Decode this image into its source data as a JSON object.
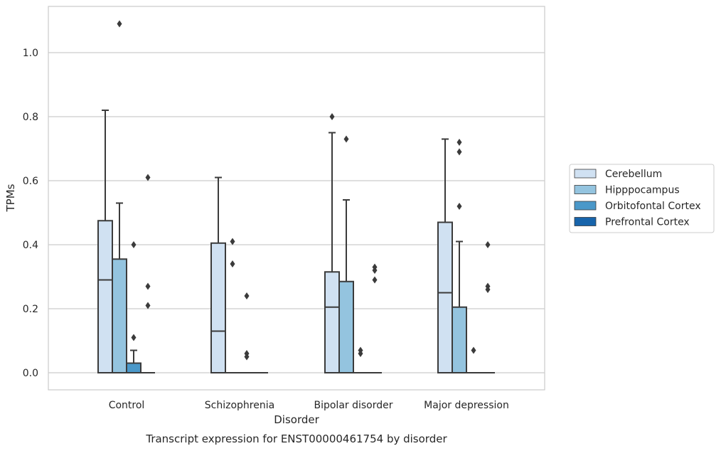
{
  "chart_data": {
    "type": "box",
    "xlabel": "Disorder",
    "ylabel": "TPMs",
    "caption": "Transcript expression for ENST00000461754 by disorder",
    "ylim": [
      -0.052,
      1.145
    ],
    "yticks": [
      "0.0",
      "0.2",
      "0.4",
      "0.6",
      "0.8",
      "1.0"
    ],
    "grid": true,
    "legend_placement": "right",
    "categories": [
      "Control",
      "Schizophrenia",
      "Bipolar disorder",
      "Major depression"
    ],
    "series": [
      {
        "name": "Cerebellum",
        "color": "#d0e1f2",
        "boxes": [
          {
            "q1": 0.0,
            "median": 0.29,
            "q3": 0.475,
            "whisker_low": 0.0,
            "whisker_high": 0.82,
            "outliers": []
          },
          {
            "q1": 0.0,
            "median": 0.13,
            "q3": 0.405,
            "whisker_low": 0.0,
            "whisker_high": 0.61,
            "outliers": []
          },
          {
            "q1": 0.0,
            "median": 0.205,
            "q3": 0.315,
            "whisker_low": 0.0,
            "whisker_high": 0.75,
            "outliers": [
              0.8
            ]
          },
          {
            "q1": 0.0,
            "median": 0.25,
            "q3": 0.47,
            "whisker_low": 0.0,
            "whisker_high": 0.73,
            "outliers": []
          }
        ]
      },
      {
        "name": "Hipppocampus",
        "color": "#94c4df",
        "boxes": [
          {
            "q1": 0.0,
            "median": 0.0,
            "q3": 0.355,
            "whisker_low": 0.0,
            "whisker_high": 0.53,
            "outliers": [
              1.09
            ]
          },
          {
            "q1": 0.0,
            "median": 0.0,
            "q3": 0.0,
            "whisker_low": 0.0,
            "whisker_high": 0.0,
            "outliers": [
              0.41,
              0.34
            ]
          },
          {
            "q1": 0.0,
            "median": 0.0,
            "q3": 0.285,
            "whisker_low": 0.0,
            "whisker_high": 0.54,
            "outliers": [
              0.73
            ]
          },
          {
            "q1": 0.0,
            "median": 0.0,
            "q3": 0.205,
            "whisker_low": 0.0,
            "whisker_high": 0.41,
            "outliers": [
              0.72,
              0.69,
              0.52
            ]
          }
        ]
      },
      {
        "name": "Orbitofontal Cortex",
        "color": "#4a98c9",
        "boxes": [
          {
            "q1": 0.0,
            "median": 0.0,
            "q3": 0.03,
            "whisker_low": 0.0,
            "whisker_high": 0.07,
            "outliers": [
              0.4,
              0.11
            ]
          },
          {
            "q1": 0.0,
            "median": 0.0,
            "q3": 0.0,
            "whisker_low": 0.0,
            "whisker_high": 0.0,
            "outliers": [
              0.24,
              0.06,
              0.05
            ]
          },
          {
            "q1": 0.0,
            "median": 0.0,
            "q3": 0.0,
            "whisker_low": 0.0,
            "whisker_high": 0.0,
            "outliers": [
              0.07,
              0.06
            ]
          },
          {
            "q1": 0.0,
            "median": 0.0,
            "q3": 0.0,
            "whisker_low": 0.0,
            "whisker_high": 0.0,
            "outliers": [
              0.07
            ]
          }
        ]
      },
      {
        "name": "Prefrontal Cortex",
        "color": "#1764ab",
        "boxes": [
          {
            "q1": 0.0,
            "median": 0.0,
            "q3": 0.0,
            "whisker_low": 0.0,
            "whisker_high": 0.0,
            "outliers": [
              0.61,
              0.27,
              0.21
            ]
          },
          {
            "q1": 0.0,
            "median": 0.0,
            "q3": 0.0,
            "whisker_low": 0.0,
            "whisker_high": 0.0,
            "outliers": []
          },
          {
            "q1": 0.0,
            "median": 0.0,
            "q3": 0.0,
            "whisker_low": 0.0,
            "whisker_high": 0.0,
            "outliers": [
              0.33,
              0.32,
              0.29
            ]
          },
          {
            "q1": 0.0,
            "median": 0.0,
            "q3": 0.0,
            "whisker_low": 0.0,
            "whisker_high": 0.0,
            "outliers": [
              0.4,
              0.27,
              0.26
            ]
          }
        ]
      }
    ]
  }
}
